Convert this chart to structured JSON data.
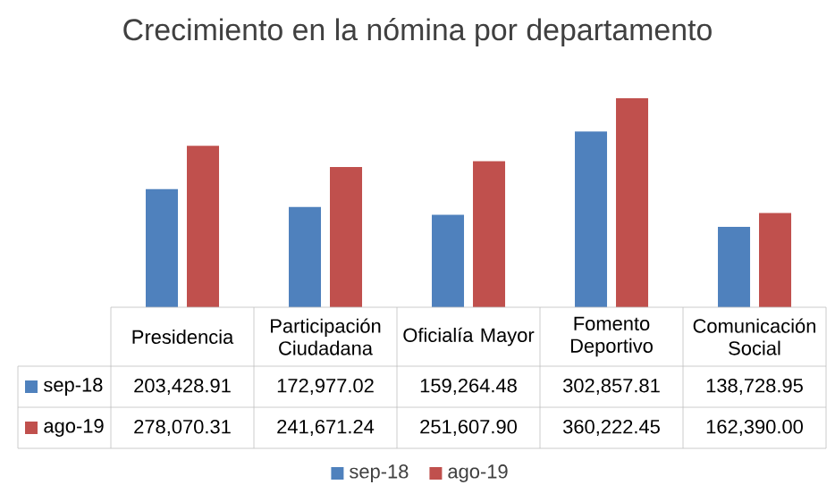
{
  "chart_data": {
    "type": "bar",
    "title": "Crecimiento en la nómina por departamento",
    "categories": [
      "Presidencia",
      "Participación Ciudadana",
      "Oficialía Mayor",
      "Fomento Deportivo",
      "Comunicación Social"
    ],
    "series": [
      {
        "name": "sep-18",
        "color": "#4f81bd",
        "values": [
          203428.91,
          172977.02,
          159264.48,
          302857.81,
          138728.95
        ],
        "value_labels": [
          "203,428.91",
          "172,977.02",
          "159,264.48",
          "302,857.81",
          "138,728.95"
        ]
      },
      {
        "name": "ago-19",
        "color": "#c0504d",
        "values": [
          278070.31,
          241671.24,
          251607.9,
          360222.45,
          162390.0
        ],
        "value_labels": [
          "278,070.31",
          "241,671.24",
          "251,607.90",
          "360,222.45",
          "162,390.00"
        ]
      }
    ],
    "data_labels": true,
    "legend": "bottom"
  }
}
